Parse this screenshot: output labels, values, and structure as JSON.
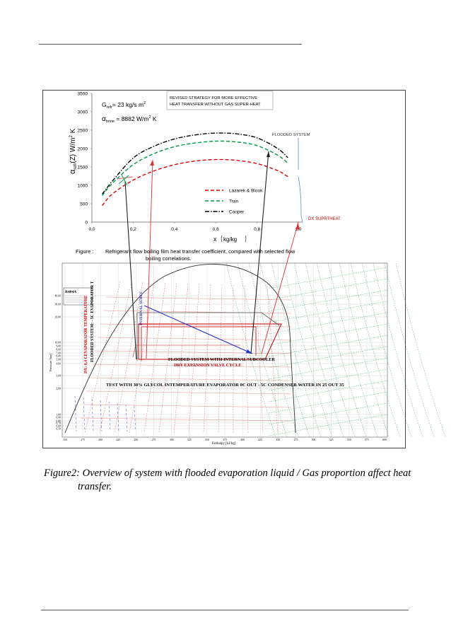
{
  "page": {
    "caption_line1": "Figure2: Overview of system with flooded evaporation liquid / Gas proportion affect heat",
    "caption_line2": "transfer."
  },
  "chart_data": [
    {
      "type": "line",
      "annotations": {
        "g_label": "G",
        "g_sub": "refr",
        "g_value": "=  23 kg/s m",
        "g_sup": "2",
        "alpha_brine_label": "α",
        "alpha_brine_sub": "brine",
        "alpha_brine_value": " = 8882 W/m",
        "alpha_brine_sup": "2",
        "alpha_brine_unit": " K",
        "strategy_line1": "REVISED STRATEGY FOR MORE EFFECTIVE",
        "strategy_line2": "HEAT TRANSFER WITHOUT GAS SUPER-HEAT",
        "flooded_system": "FLOODED SYSTEM",
        "dx_superheat": "DX SUPRTHEAT"
      },
      "ylabel_parts": {
        "alpha": "α",
        "sub": "refr",
        "rest": "(Z)  W/m",
        "sup": "2",
        "unit": " K"
      },
      "xlabel_parts": {
        "x": "x",
        "unit": "kg/kg"
      },
      "xlim": [
        0,
        1.0
      ],
      "ylim": [
        0,
        3500
      ],
      "x_ticks": [
        0,
        0.2,
        0.4,
        0.6,
        0.8,
        1.0
      ],
      "x_tick_labels": [
        "0,0",
        "0,2",
        "0,4",
        "0,6",
        "0,8",
        "1,0"
      ],
      "y_ticks": [
        0,
        500,
        1000,
        1500,
        2000,
        2500,
        3000,
        3500
      ],
      "y_tick_labels": [
        "0",
        "500",
        "1000",
        "1500",
        "2000",
        "2500",
        "3000",
        "3500"
      ],
      "legend_position": "lower-right",
      "series": [
        {
          "name": "Lazarek & Blook",
          "color": "#e00000",
          "dash": "dash",
          "x": [
            0.05,
            0.1,
            0.2,
            0.3,
            0.4,
            0.5,
            0.6,
            0.7,
            0.8,
            0.9,
            0.95
          ],
          "y": [
            450,
            770,
            1140,
            1390,
            1560,
            1660,
            1700,
            1680,
            1590,
            1400,
            1230
          ]
        },
        {
          "name": "Tran",
          "color": "#009a44",
          "dash": "dash",
          "x": [
            0.05,
            0.1,
            0.2,
            0.3,
            0.4,
            0.5,
            0.6,
            0.7,
            0.8,
            0.9,
            0.95
          ],
          "y": [
            720,
            1060,
            1560,
            1860,
            2050,
            2150,
            2200,
            2180,
            2080,
            1820,
            1600
          ]
        },
        {
          "name": "Cooper",
          "color": "#000000",
          "dash": "dashdot",
          "x": [
            0.05,
            0.1,
            0.2,
            0.3,
            0.4,
            0.5,
            0.6,
            0.7,
            0.8,
            0.9,
            0.95
          ],
          "y": [
            760,
            1120,
            1740,
            2060,
            2260,
            2370,
            2420,
            2400,
            2290,
            2000,
            1750
          ]
        }
      ],
      "caption_label": "Figure  :",
      "caption_line1": "Refrigerant flow boiling film heat transfer coefficient, compared with selected flow",
      "caption_line2": "boiling  correlations."
    },
    {
      "type": "diagram",
      "box_title": "R404A",
      "y_tick_labels": [
        "40,00",
        "30,00",
        "20,00",
        "10,00",
        "9,00",
        "8,00",
        "7,00",
        "6,00",
        "5,00",
        "4,00",
        "3,00",
        "2,00",
        "1,00",
        "0,90",
        "0,80",
        "0,70",
        "0,60",
        "0,50"
      ],
      "x_tick_labels": [
        "150",
        "175",
        "200",
        "225",
        "250",
        "275",
        "300",
        "325",
        "350",
        "375",
        "400",
        "425",
        "450",
        "475",
        "500",
        "525",
        "550",
        "575",
        "600"
      ],
      "ylabel": "Pressure [bar]",
      "xlabel": "Enthalpy [kJ/kg]",
      "vertical_label_1": "DX: 8,4 CEVAPORATOR TEMPERATURE",
      "vertical_label_2": "FLOODED SYSTEM: - 5C EVAPORATOR T",
      "internal_subcooler": "INTERNAL SUBCC",
      "flooded_line1": "FLOODED SYSTEM WITH INTERNAL SUBCOOLER",
      "flooded_line2": "DRY EXPANSION VALVE CYCLE",
      "test_line": "TEST WITH 30% GLYCOL INTEMPERATURE EVAPORATOR 0C OUT - 5C CONDENSER  WATER IN 25 OUT 35"
    }
  ]
}
